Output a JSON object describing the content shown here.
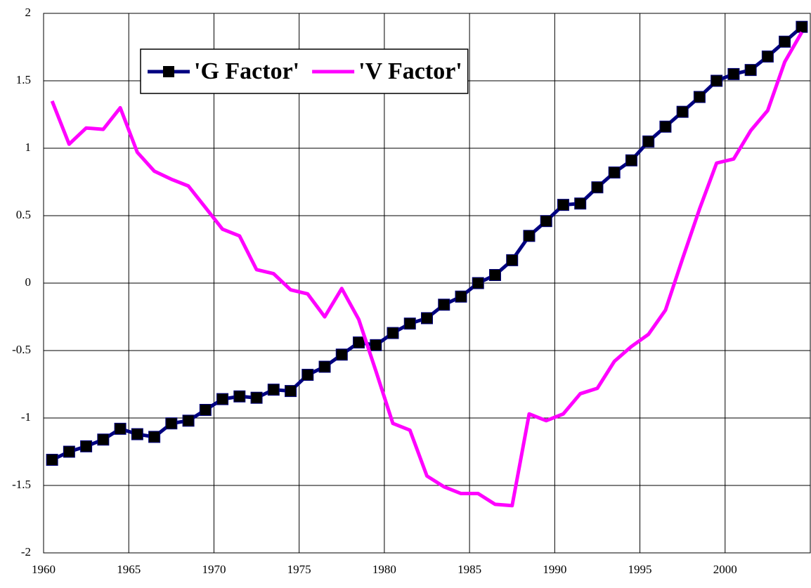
{
  "chart_data": {
    "type": "line",
    "categories": [
      "1960",
      null,
      null,
      null,
      null,
      "1965",
      null,
      null,
      null,
      null,
      "1970",
      null,
      null,
      null,
      null,
      "1975",
      null,
      null,
      null,
      null,
      "1980",
      null,
      null,
      null,
      null,
      "1985",
      null,
      null,
      null,
      null,
      "1990",
      null,
      null,
      null,
      null,
      "1995",
      null,
      null,
      null,
      null,
      "2000",
      null,
      null,
      null,
      null
    ],
    "series": [
      {
        "name": "'G Factor'",
        "color": "#000080",
        "marker": "square",
        "marker_color": "#000000",
        "values": [
          -1.31,
          -1.25,
          -1.21,
          -1.16,
          -1.08,
          -1.12,
          -1.14,
          -1.04,
          -1.02,
          -0.94,
          -0.86,
          -0.84,
          -0.85,
          -0.79,
          -0.8,
          -0.68,
          -0.62,
          -0.53,
          -0.44,
          -0.46,
          -0.37,
          -0.3,
          -0.26,
          -0.16,
          -0.1,
          0.0,
          0.06,
          0.17,
          0.35,
          0.46,
          0.58,
          0.59,
          0.71,
          0.82,
          0.91,
          1.05,
          1.16,
          1.27,
          1.38,
          1.5,
          1.55,
          1.58,
          1.68,
          1.79,
          1.9
        ]
      },
      {
        "name": "'V Factor'",
        "color": "#ff00ff",
        "values": [
          1.35,
          1.03,
          1.15,
          1.14,
          1.3,
          0.97,
          0.83,
          0.77,
          0.72,
          0.56,
          0.4,
          0.35,
          0.1,
          0.07,
          -0.05,
          -0.08,
          -0.25,
          -0.04,
          -0.27,
          -0.65,
          -1.04,
          -1.09,
          -1.43,
          -1.51,
          -1.56,
          -1.56,
          -1.64,
          -1.65,
          -0.97,
          -1.02,
          -0.97,
          -0.82,
          -0.78,
          -0.58,
          -0.47,
          -0.38,
          -0.2,
          0.18,
          0.55,
          0.89,
          0.92,
          1.13,
          1.28,
          1.64,
          1.86
        ]
      }
    ],
    "ylim": [
      -2,
      2
    ],
    "yticks": [
      -2,
      -1.5,
      -1,
      -0.5,
      0,
      0.5,
      1,
      1.5,
      2
    ],
    "grid": true,
    "legend": "top-left"
  }
}
